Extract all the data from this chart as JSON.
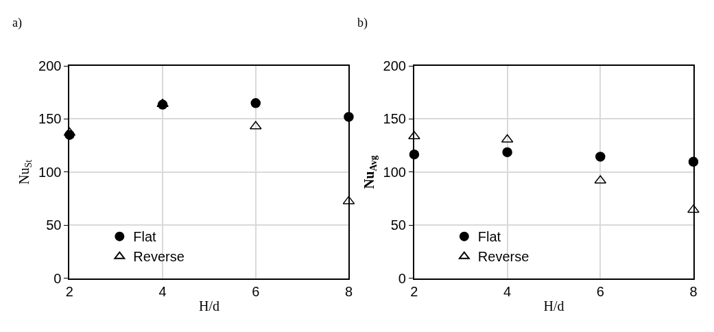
{
  "chart_data": [
    {
      "type": "scatter",
      "title": "a)",
      "xlabel": "H/d",
      "ylabel": "Nu$_{St}$",
      "x": [
        2,
        4,
        6,
        8
      ],
      "xlim": [
        2,
        8
      ],
      "xticks": [
        2,
        4,
        6,
        8
      ],
      "ylim": [
        0,
        200
      ],
      "yticks": [
        0,
        50,
        100,
        150,
        200
      ],
      "grid": true,
      "legend": "bottom left",
      "series": [
        {
          "name": "Flat",
          "color": "#000000",
          "marker": "circle",
          "values": [
            135,
            163.5,
            165,
            152
          ]
        },
        {
          "name": "Reverse",
          "color": "#000000",
          "marker": "triangle",
          "values": [
            137,
            164,
            143,
            72.5
          ]
        }
      ]
    },
    {
      "type": "scatter",
      "title": "b)",
      "xlabel": "H/d",
      "ylabel": "Nu$_{Avg}$",
      "x": [
        2,
        4,
        6,
        8
      ],
      "xlim": [
        2,
        8
      ],
      "xticks": [
        2,
        4,
        6,
        8
      ],
      "ylim": [
        0,
        200
      ],
      "yticks": [
        0,
        50,
        100,
        150,
        200
      ],
      "grid": true,
      "legend": "bottom left",
      "series": [
        {
          "name": "Flat",
          "color": "#000000",
          "marker": "circle",
          "values": [
            116.6,
            118.7,
            114.5,
            109.7
          ]
        },
        {
          "name": "Reverse",
          "color": "#000000",
          "marker": "triangle",
          "values": [
            133.7,
            130.6,
            92,
            64.4
          ]
        }
      ]
    }
  ]
}
